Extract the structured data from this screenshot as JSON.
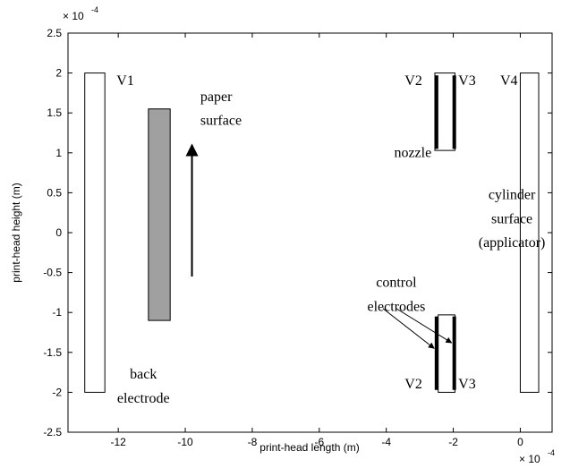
{
  "chart_data": {
    "type": "diagram",
    "xlabel": "print-head length (m)",
    "ylabel": "print-head height (m)",
    "x_exponent": {
      "base": "× 10",
      "power": "-4"
    },
    "y_exponent": {
      "base": "× 10",
      "power": "-4"
    },
    "x_ticks": [
      {
        "value": -12,
        "label": "-12"
      },
      {
        "value": -10,
        "label": "-10"
      },
      {
        "value": -8,
        "label": "-8"
      },
      {
        "value": -6,
        "label": "-6"
      },
      {
        "value": -4,
        "label": "-4"
      },
      {
        "value": -2,
        "label": "-2"
      },
      {
        "value": 0,
        "label": "0"
      }
    ],
    "y_ticks": [
      {
        "value": 2.5,
        "label": "2.5"
      },
      {
        "value": 2,
        "label": "2"
      },
      {
        "value": 1.5,
        "label": "1.5"
      },
      {
        "value": 1,
        "label": "1"
      },
      {
        "value": 0.5,
        "label": "0.5"
      },
      {
        "value": 0,
        "label": "0"
      },
      {
        "value": -0.5,
        "label": "-0.5"
      },
      {
        "value": -1,
        "label": "-1"
      },
      {
        "value": -1.5,
        "label": "-1.5"
      },
      {
        "value": -2,
        "label": "-2"
      },
      {
        "value": -2.5,
        "label": "-2.5"
      }
    ],
    "xlim": [
      -13.5,
      0.95
    ],
    "ylim": [
      -2.5,
      2.5
    ],
    "shapes": [
      {
        "id": "v1-electrode",
        "kind": "outline",
        "x": [
          -13,
          -12.4
        ],
        "y": [
          -2,
          2
        ]
      },
      {
        "id": "back-electrode",
        "kind": "filled",
        "color": "#a0a0a0",
        "x": [
          -11.1,
          -10.45
        ],
        "y": [
          -1.1,
          1.55
        ]
      },
      {
        "id": "cylinder-surface",
        "kind": "outline",
        "x": [
          0,
          0.55
        ],
        "y": [
          -2,
          2
        ]
      },
      {
        "id": "top-nozzle-box",
        "kind": "outline",
        "x": [
          -2.55,
          -1.95
        ],
        "y": [
          1.03,
          2
        ]
      },
      {
        "id": "top-v2-electrode",
        "kind": "thick",
        "x": [
          -2.5,
          -2.5
        ],
        "y": [
          1.05,
          1.97
        ]
      },
      {
        "id": "top-v3-electrode",
        "kind": "thick",
        "x": [
          -1.97,
          -1.97
        ],
        "y": [
          1.05,
          1.97
        ]
      },
      {
        "id": "bottom-nozzle-box",
        "kind": "outline",
        "x": [
          -2.45,
          -1.95
        ],
        "y": [
          -2,
          -1.03
        ]
      },
      {
        "id": "bottom-v2-electrode",
        "kind": "thick",
        "x": [
          -2.5,
          -2.5
        ],
        "y": [
          -1.97,
          -1.05
        ]
      },
      {
        "id": "bottom-v3-electrode",
        "kind": "thick",
        "x": [
          -1.97,
          -1.97
        ],
        "y": [
          -1.97,
          -1.05
        ]
      }
    ],
    "arrows": [
      {
        "id": "paper-direction-arrow",
        "from": [
          -9.8,
          -0.55
        ],
        "to": [
          -9.8,
          1.1
        ]
      },
      {
        "id": "control-arrow-1",
        "from": [
          -4.1,
          -0.95
        ],
        "to": [
          -2.57,
          -1.45
        ]
      },
      {
        "id": "control-arrow-2",
        "from": [
          -3.7,
          -0.95
        ],
        "to": [
          -2.05,
          -1.38
        ]
      }
    ],
    "annotations": [
      {
        "id": "label-v1",
        "text": "V1",
        "x": -12.05,
        "y": 1.85,
        "anchor": "start"
      },
      {
        "id": "label-paper",
        "text": "paper",
        "x": -9.55,
        "y": 1.65,
        "anchor": "start"
      },
      {
        "id": "label-surface",
        "text": "surface",
        "x": -9.55,
        "y": 1.35,
        "anchor": "start"
      },
      {
        "id": "label-top-v2",
        "text": "V2",
        "x": -3.45,
        "y": 1.85,
        "anchor": "start"
      },
      {
        "id": "label-top-v3",
        "text": "V3",
        "x": -1.85,
        "y": 1.85,
        "anchor": "start"
      },
      {
        "id": "label-v4",
        "text": "V4",
        "x": -0.6,
        "y": 1.85,
        "anchor": "start"
      },
      {
        "id": "label-nozzle",
        "text": "nozzle",
        "x": -2.65,
        "y": 0.95,
        "anchor": "end"
      },
      {
        "id": "label-cylinder",
        "text": "cylinder",
        "x": -0.25,
        "y": 0.42,
        "anchor": "middle"
      },
      {
        "id": "label-cylinder-surface",
        "text": "surface",
        "x": -0.25,
        "y": 0.12,
        "anchor": "middle"
      },
      {
        "id": "label-applicator",
        "text": "(applicator)",
        "x": -0.25,
        "y": -0.18,
        "anchor": "middle"
      },
      {
        "id": "label-control",
        "text": "control",
        "x": -3.7,
        "y": -0.68,
        "anchor": "middle"
      },
      {
        "id": "label-electrodes",
        "text": "electrodes",
        "x": -3.7,
        "y": -0.98,
        "anchor": "middle"
      },
      {
        "id": "label-back",
        "text": "back",
        "x": -11.25,
        "y": -1.83,
        "anchor": "middle"
      },
      {
        "id": "label-electrode",
        "text": "electrode",
        "x": -11.25,
        "y": -2.13,
        "anchor": "middle"
      },
      {
        "id": "label-bottom-v2",
        "text": "V2",
        "x": -3.45,
        "y": -1.95,
        "anchor": "start"
      },
      {
        "id": "label-bottom-v3",
        "text": "V3",
        "x": -1.85,
        "y": -1.95,
        "anchor": "start"
      }
    ]
  }
}
